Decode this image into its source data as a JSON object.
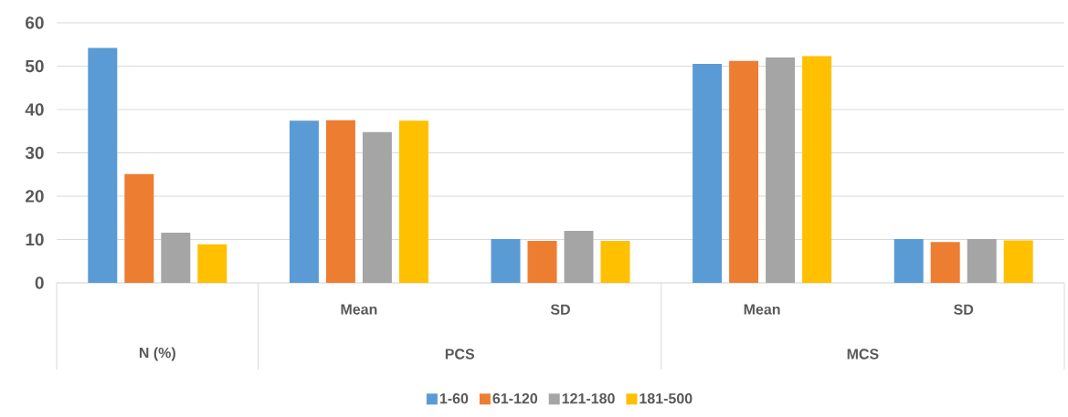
{
  "chart_data": {
    "type": "bar",
    "categories": [
      null,
      "Mean",
      "SD",
      "Mean",
      "SD"
    ],
    "series": [
      {
        "name": "1-60",
        "color": "#5b9bd5",
        "values": [
          54.2,
          37.4,
          10.1,
          50.5,
          10.1
        ]
      },
      {
        "name": "61-120",
        "color": "#ed7d31",
        "values": [
          25.1,
          37.5,
          9.7,
          51.2,
          9.4
        ]
      },
      {
        "name": "121-180",
        "color": "#a5a5a5",
        "values": [
          11.6,
          34.8,
          12.0,
          52.0,
          10.1
        ]
      },
      {
        "name": "181-500",
        "color": "#ffc000",
        "values": [
          8.9,
          37.4,
          9.7,
          52.3,
          9.8
        ]
      }
    ],
    "annotations": [
      "N (%)",
      "PCS",
      "MCS"
    ],
    "ylim": [
      0,
      60
    ],
    "yticks": [
      0,
      10,
      20,
      30,
      40,
      50,
      60
    ],
    "grid": "y",
    "legend": "bottom"
  }
}
